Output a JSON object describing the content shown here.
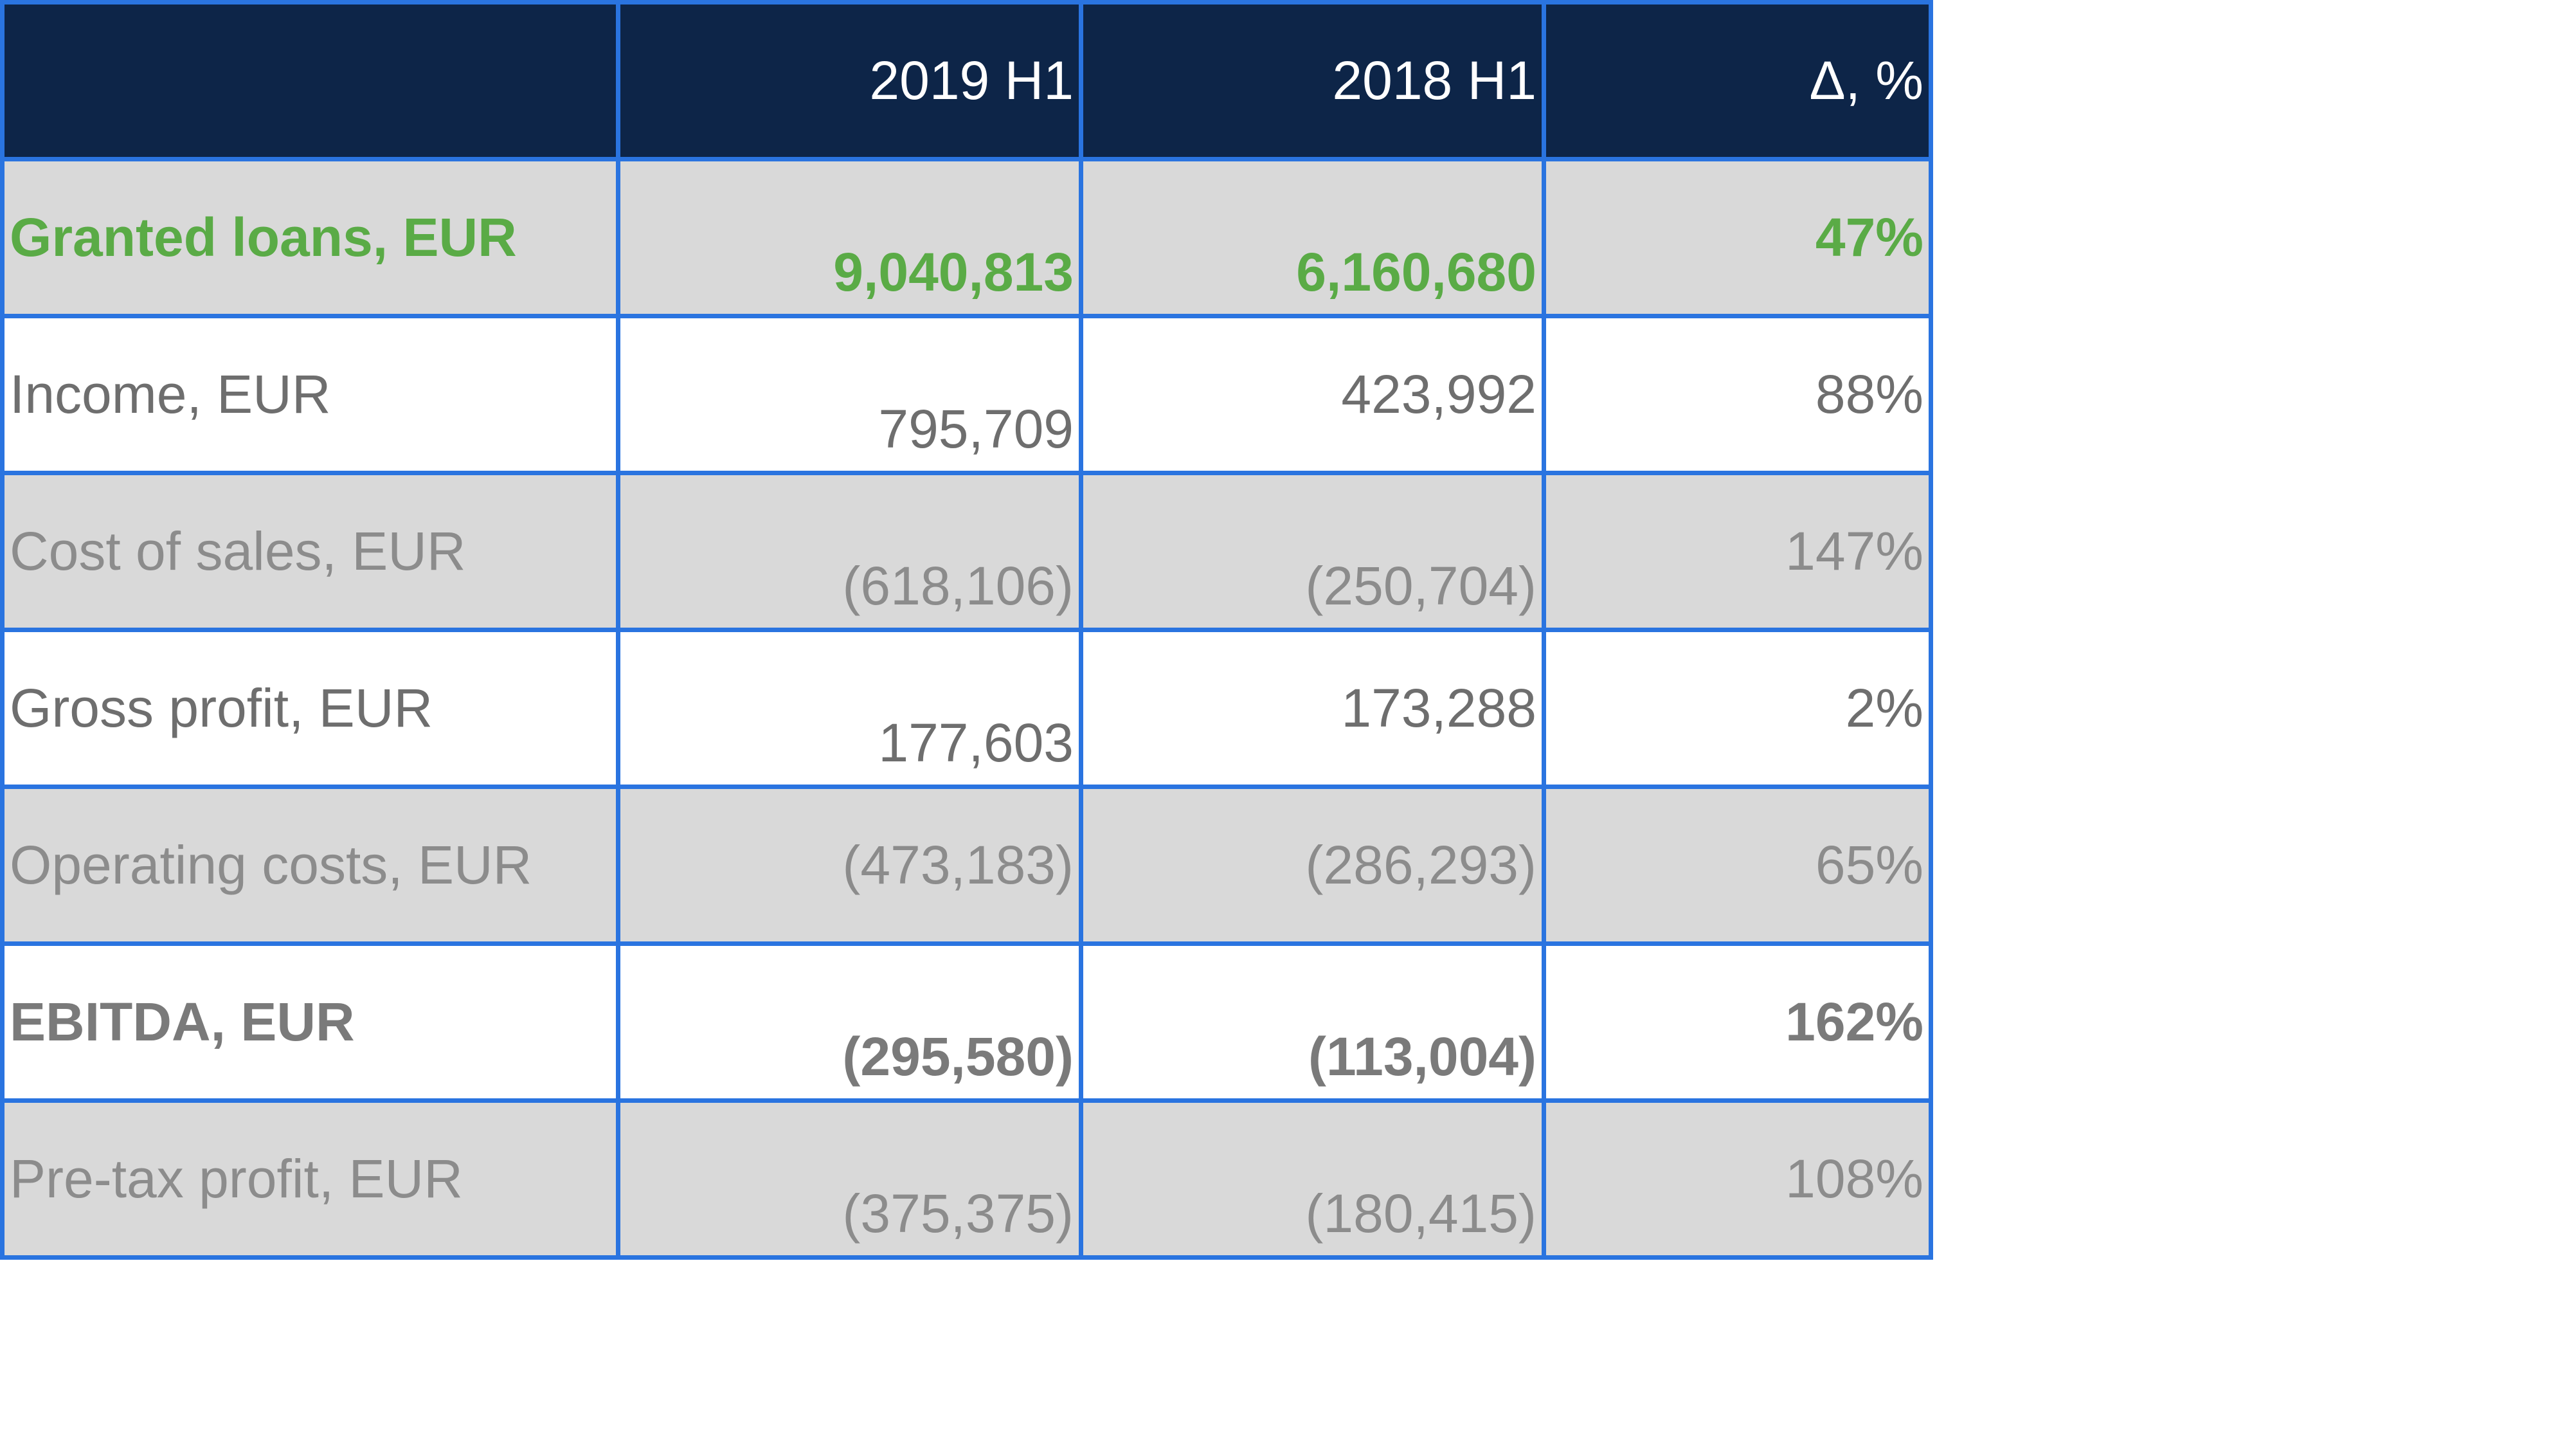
{
  "table": {
    "headers": [
      "",
      "2019 H1",
      "2018 H1",
      "Δ, %"
    ],
    "rows": [
      {
        "label": "Granted loans, EUR",
        "h1_2019": "9,040,813",
        "h1_2018": "6,160,680",
        "delta": "47%"
      },
      {
        "label": "Income, EUR",
        "h1_2019": "795,709",
        "h1_2018": "423,992",
        "delta": "88%"
      },
      {
        "label": "Cost of sales, EUR",
        "h1_2019": "(618,106)",
        "h1_2018": "(250,704)",
        "delta": "147%"
      },
      {
        "label": "Gross profit, EUR",
        "h1_2019": "177,603",
        "h1_2018": "173,288",
        "delta": "2%"
      },
      {
        "label": "Operating costs, EUR",
        "h1_2019": "(473,183)",
        "h1_2018": "(286,293)",
        "delta": "65%"
      },
      {
        "label": "EBITDA, EUR",
        "h1_2019": "(295,580)",
        "h1_2018": "(113,004)",
        "delta": "162%"
      },
      {
        "label": "Pre-tax profit, EUR",
        "h1_2019": "(375,375)",
        "h1_2018": "(180,415)",
        "delta": "108%"
      }
    ]
  },
  "colors": {
    "header_background": "#0d2548",
    "border": "#2a74e0",
    "shaded_row": "#d9d9d9",
    "highlight_green": "#5aab46",
    "text_gray": "#6e6e6e",
    "text_light_gray": "#8c8c8c"
  }
}
